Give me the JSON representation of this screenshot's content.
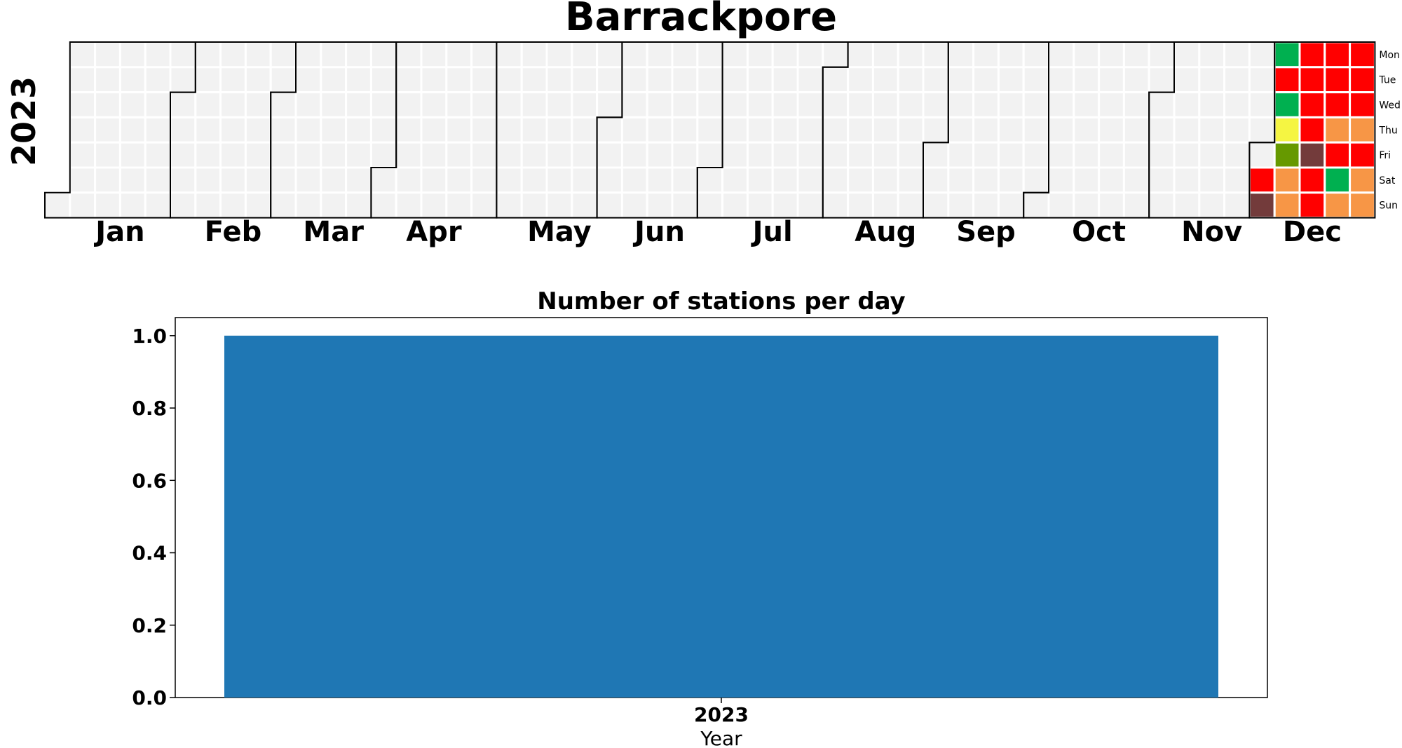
{
  "title": "Barrackpore",
  "chart_data": [
    {
      "type": "heatmap",
      "title": "Barrackpore",
      "year": "2023",
      "months": [
        "Jan",
        "Feb",
        "Mar",
        "Apr",
        "May",
        "Jun",
        "Jul",
        "Aug",
        "Sep",
        "Oct",
        "Nov",
        "Dec"
      ],
      "weekdays": [
        "Mon",
        "Tue",
        "Wed",
        "Thu",
        "Fri",
        "Sat",
        "Sun"
      ],
      "colors": {
        "empty": "#f2f2f2",
        "good": "#00b050",
        "satisfactory": "#669900",
        "moderate": "#f5f542",
        "poor": "#f79646",
        "very_poor": "#ff0000",
        "severe": "#733b3b"
      },
      "cells": [
        {
          "date": "2023-12-02",
          "category": "very_poor"
        },
        {
          "date": "2023-12-03",
          "category": "severe"
        },
        {
          "date": "2023-12-04",
          "category": "good"
        },
        {
          "date": "2023-12-05",
          "category": "very_poor"
        },
        {
          "date": "2023-12-06",
          "category": "good"
        },
        {
          "date": "2023-12-07",
          "category": "moderate"
        },
        {
          "date": "2023-12-08",
          "category": "satisfactory"
        },
        {
          "date": "2023-12-09",
          "category": "poor"
        },
        {
          "date": "2023-12-10",
          "category": "poor"
        },
        {
          "date": "2023-12-11",
          "category": "very_poor"
        },
        {
          "date": "2023-12-12",
          "category": "very_poor"
        },
        {
          "date": "2023-12-13",
          "category": "very_poor"
        },
        {
          "date": "2023-12-14",
          "category": "very_poor"
        },
        {
          "date": "2023-12-15",
          "category": "severe"
        },
        {
          "date": "2023-12-16",
          "category": "very_poor"
        },
        {
          "date": "2023-12-17",
          "category": "very_poor"
        },
        {
          "date": "2023-12-18",
          "category": "very_poor"
        },
        {
          "date": "2023-12-19",
          "category": "very_poor"
        },
        {
          "date": "2023-12-20",
          "category": "very_poor"
        },
        {
          "date": "2023-12-21",
          "category": "poor"
        },
        {
          "date": "2023-12-22",
          "category": "very_poor"
        },
        {
          "date": "2023-12-23",
          "category": "good"
        },
        {
          "date": "2023-12-24",
          "category": "poor"
        },
        {
          "date": "2023-12-25",
          "category": "very_poor"
        },
        {
          "date": "2023-12-26",
          "category": "very_poor"
        },
        {
          "date": "2023-12-27",
          "category": "very_poor"
        },
        {
          "date": "2023-12-28",
          "category": "poor"
        },
        {
          "date": "2023-12-29",
          "category": "very_poor"
        },
        {
          "date": "2023-12-30",
          "category": "poor"
        },
        {
          "date": "2023-12-31",
          "category": "poor"
        }
      ]
    },
    {
      "type": "bar",
      "title": "Number of stations per day",
      "categories": [
        "2023"
      ],
      "values": [
        1.0
      ],
      "xlabel": "Year",
      "ylabel": "",
      "ylim": [
        0,
        1.05
      ],
      "yticks": [
        "0.0",
        "0.2",
        "0.4",
        "0.6",
        "0.8",
        "1.0"
      ],
      "bar_color": "#1f77b4",
      "grid": false
    }
  ]
}
